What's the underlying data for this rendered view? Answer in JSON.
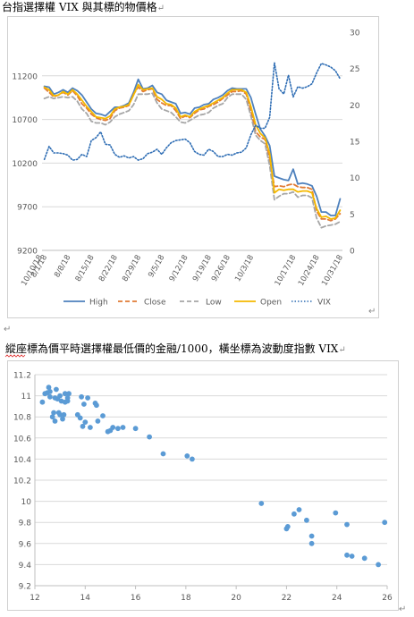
{
  "doc": {
    "line1": "台指選擇權 VIX 與其標的物價格",
    "line2": "縱座標為價平時選擇權最低價的金融/1000，橫坐標為波動度指數 VIX",
    "para_mark": "↵"
  },
  "colors": {
    "high": "#4e81bd",
    "close": "#e07b35",
    "low": "#a6a6a6",
    "open": "#f4b800",
    "vix": "#2e6db4",
    "scatter": "#5b9bd5",
    "grid": "#d9d9d9",
    "axis_text": "#595959"
  },
  "chart_data": [
    {
      "type": "line",
      "title": "",
      "x": [
        "8/1/18",
        "8/2/18",
        "8/3/18",
        "8/6/18",
        "8/7/18",
        "8/8/18",
        "8/9/18",
        "8/10/18",
        "8/13/18",
        "8/14/18",
        "8/15/18",
        "8/16/18",
        "8/17/18",
        "8/20/18",
        "8/21/18",
        "8/22/18",
        "8/23/18",
        "8/24/18",
        "8/27/18",
        "8/28/18",
        "8/29/18",
        "8/30/18",
        "8/31/18",
        "9/3/18",
        "9/4/18",
        "9/5/18",
        "9/6/18",
        "9/7/18",
        "9/10/18",
        "9/11/18",
        "9/12/18",
        "9/13/18",
        "9/14/18",
        "9/17/18",
        "9/18/18",
        "9/19/18",
        "9/20/18",
        "9/21/18",
        "9/25/18",
        "9/26/18",
        "9/27/18",
        "9/28/18",
        "10/1/18",
        "10/2/18",
        "10/3/18",
        "10/4/18",
        "10/5/18",
        "10/8/18",
        "10/9/18",
        "10/11/18",
        "10/12/18",
        "10/15/18",
        "10/16/18",
        "10/17/18",
        "10/18/18",
        "10/19/18",
        "10/22/18",
        "10/23/18",
        "10/24/18",
        "10/25/18",
        "10/26/18",
        "10/29/18",
        "10/30/18",
        "10/31/18"
      ],
      "x_tick_labels": [
        "8/1/18",
        "8/8/18",
        "8/15/18",
        "8/22/18",
        "8/29/18",
        "9/5/18",
        "9/12/18",
        "9/19/18",
        "9/26/18",
        "10/3/18",
        "10/10/18",
        "10/17/18",
        "10/24/18",
        "10/31/18"
      ],
      "ylim": [
        9200,
        11700
      ],
      "y_ticks": [
        9200,
        9700,
        10200,
        10700,
        11200
      ],
      "y2lim": [
        0,
        30
      ],
      "y2_ticks": [
        0,
        5,
        10,
        15,
        20,
        25,
        30
      ],
      "legend_position": "bottom",
      "gridlines": true,
      "series": [
        {
          "name": "High",
          "axis": "left",
          "style": "solid",
          "color_key": "high",
          "values": [
            11080,
            11070,
            10990,
            11010,
            11040,
            11010,
            11060,
            11030,
            10980,
            10900,
            10820,
            10770,
            10760,
            10740,
            10790,
            10840,
            10840,
            10860,
            10890,
            11010,
            11160,
            11050,
            11060,
            11090,
            11010,
            10990,
            10920,
            10900,
            10880,
            10770,
            10780,
            10760,
            10830,
            10840,
            10870,
            10880,
            10930,
            10950,
            10980,
            11030,
            11060,
            11050,
            11050,
            11050,
            10950,
            10760,
            10590,
            10510,
            10400,
            10050,
            10030,
            10010,
            10000,
            10130,
            9960,
            9970,
            9960,
            9940,
            9820,
            9640,
            9640,
            9600,
            9600,
            9790
          ]
        },
        {
          "name": "Close",
          "axis": "left",
          "style": "dash",
          "color_key": "close",
          "values": [
            11060,
            11010,
            10960,
            10980,
            11010,
            10980,
            11030,
            10970,
            10880,
            10830,
            10760,
            10720,
            10700,
            10690,
            10710,
            10800,
            10830,
            10840,
            10860,
            10990,
            11070,
            11020,
            11040,
            11050,
            10930,
            10890,
            10860,
            10860,
            10800,
            10710,
            10740,
            10720,
            10770,
            10810,
            10820,
            10850,
            10870,
            10900,
            10940,
            10980,
            11020,
            11020,
            11030,
            10990,
            10800,
            10560,
            10500,
            10470,
            10250,
            9930,
            9940,
            9930,
            9950,
            9960,
            9930,
            9920,
            9920,
            9900,
            9650,
            9560,
            9560,
            9540,
            9560,
            9620
          ]
        },
        {
          "name": "Low",
          "axis": "left",
          "style": "dash",
          "color_key": "low",
          "values": [
            10940,
            10960,
            10940,
            10950,
            10960,
            10950,
            10960,
            10910,
            10820,
            10770,
            10680,
            10660,
            10660,
            10640,
            10670,
            10730,
            10760,
            10780,
            10800,
            10870,
            10990,
            10990,
            10990,
            11000,
            10890,
            10820,
            10800,
            10780,
            10730,
            10670,
            10660,
            10690,
            10720,
            10750,
            10760,
            10780,
            10830,
            10860,
            10880,
            10950,
            10990,
            10990,
            10990,
            10930,
            10740,
            10520,
            10460,
            10420,
            10170,
            9780,
            9820,
            9850,
            9850,
            9870,
            9810,
            9830,
            9830,
            9800,
            9570,
            9460,
            9480,
            9490,
            9500,
            9530
          ]
        },
        {
          "name": "Open",
          "axis": "left",
          "style": "solid",
          "color_key": "open",
          "values": [
            11070,
            11040,
            10970,
            10980,
            11020,
            10990,
            11040,
            10990,
            10920,
            10850,
            10790,
            10730,
            10720,
            10710,
            10740,
            10820,
            10840,
            10850,
            10870,
            10980,
            11100,
            11040,
            11050,
            11060,
            10960,
            10930,
            10880,
            10870,
            10830,
            10730,
            10750,
            10730,
            10790,
            10820,
            10840,
            10860,
            10890,
            10920,
            10950,
            11000,
            11040,
            11040,
            11040,
            11010,
            10850,
            10640,
            10540,
            10490,
            10310,
            9860,
            9900,
            9890,
            9900,
            9900,
            9870,
            9880,
            9880,
            9860,
            9680,
            9580,
            9590,
            9560,
            9570,
            9660
          ]
        },
        {
          "name": "VIX",
          "axis": "right",
          "style": "dot",
          "color_key": "vix",
          "values": [
            12.5,
            14.3,
            13.4,
            13.4,
            13.3,
            13.1,
            12.4,
            12.5,
            13.2,
            12.9,
            15.1,
            15.5,
            16.3,
            14.6,
            14.5,
            13.2,
            12.8,
            13.0,
            12.7,
            12.9,
            12.4,
            12.6,
            13.3,
            13.5,
            13.9,
            13.2,
            14.1,
            14.8,
            15.1,
            15.2,
            15.3,
            14.8,
            13.6,
            13.2,
            13.1,
            13.9,
            13.6,
            12.9,
            12.9,
            13.2,
            13.1,
            13.4,
            13.5,
            14.1,
            15.9,
            17.2,
            16.8,
            16.8,
            18.3,
            25.8,
            22.2,
            21.5,
            24.1,
            21.1,
            22.5,
            22.3,
            22.5,
            22.9,
            24.4,
            25.7,
            25.5,
            25.2,
            24.7,
            23.6
          ]
        }
      ]
    },
    {
      "type": "scatter",
      "title": "",
      "xlim": [
        12,
        26
      ],
      "x_ticks": [
        12,
        14,
        16,
        18,
        20,
        22,
        24,
        26
      ],
      "ylim": [
        9.2,
        11.2
      ],
      "y_ticks": [
        9.2,
        9.4,
        9.6,
        9.8,
        10,
        10.2,
        10.4,
        10.6,
        10.8,
        11,
        11.2
      ],
      "gridlines": true,
      "points": [
        [
          12.3,
          10.94
        ],
        [
          12.4,
          11.02
        ],
        [
          12.5,
          11.03
        ],
        [
          12.55,
          11.08
        ],
        [
          12.6,
          11.04
        ],
        [
          12.6,
          10.99
        ],
        [
          12.7,
          10.8
        ],
        [
          12.75,
          10.84
        ],
        [
          12.8,
          10.98
        ],
        [
          12.8,
          10.76
        ],
        [
          12.85,
          11.06
        ],
        [
          12.9,
          10.97
        ],
        [
          12.95,
          10.84
        ],
        [
          13.0,
          10.82
        ],
        [
          13.0,
          11.0
        ],
        [
          13.05,
          10.95
        ],
        [
          13.1,
          10.78
        ],
        [
          13.15,
          10.82
        ],
        [
          13.2,
          11.02
        ],
        [
          13.2,
          10.94
        ],
        [
          13.3,
          10.95
        ],
        [
          13.35,
          11.02
        ],
        [
          13.3,
          10.98
        ],
        [
          13.7,
          10.82
        ],
        [
          13.8,
          10.79
        ],
        [
          13.85,
          10.99
        ],
        [
          13.9,
          10.71
        ],
        [
          14.0,
          10.75
        ],
        [
          13.95,
          10.92
        ],
        [
          14.1,
          10.98
        ],
        [
          14.2,
          10.7
        ],
        [
          14.4,
          10.93
        ],
        [
          14.45,
          10.91
        ],
        [
          14.5,
          10.76
        ],
        [
          14.7,
          10.81
        ],
        [
          14.9,
          10.66
        ],
        [
          15.0,
          10.67
        ],
        [
          15.1,
          10.7
        ],
        [
          15.3,
          10.69
        ],
        [
          15.5,
          10.7
        ],
        [
          16.0,
          10.69
        ],
        [
          16.55,
          10.61
        ],
        [
          17.1,
          10.45
        ],
        [
          18.05,
          10.43
        ],
        [
          18.25,
          10.4
        ],
        [
          21.0,
          9.98
        ],
        [
          22.0,
          9.74
        ],
        [
          22.05,
          9.76
        ],
        [
          22.3,
          9.88
        ],
        [
          22.5,
          9.92
        ],
        [
          22.8,
          9.82
        ],
        [
          23.0,
          9.67
        ],
        [
          23.0,
          9.6
        ],
        [
          23.95,
          9.89
        ],
        [
          24.4,
          9.78
        ],
        [
          24.4,
          9.49
        ],
        [
          24.6,
          9.48
        ],
        [
          25.1,
          9.46
        ],
        [
          25.65,
          9.4
        ],
        [
          25.9,
          9.8
        ]
      ]
    }
  ]
}
